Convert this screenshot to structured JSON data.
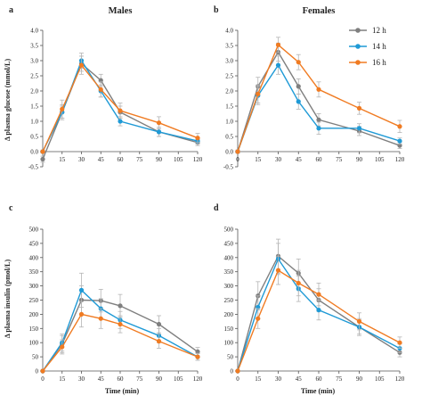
{
  "figure": {
    "ylabel_glucose": "Δ plasma glucose (mmol/L)",
    "ylabel_insulin": "Δ plasma insulin (pmol/L)",
    "xlabel": "Time (min)"
  },
  "legend": [
    {
      "name": "12 h",
      "color": "#7f7f7f"
    },
    {
      "name": "14 h",
      "color": "#1f9ad6"
    },
    {
      "name": "16 h",
      "color": "#f07b22"
    }
  ],
  "chart_data": [
    {
      "panel": "a",
      "title": "Males",
      "type": "line",
      "x": [
        0,
        15,
        30,
        45,
        60,
        90,
        120
      ],
      "xticks": [
        "0",
        "15",
        "30",
        "45",
        "60",
        "75",
        "90",
        "105",
        "120"
      ],
      "xlim": [
        0,
        120
      ],
      "ylim": [
        -0.5,
        4.0
      ],
      "yticks": [
        "-0.5",
        "0.0",
        "0.5",
        "1.0",
        "1.5",
        "2.0",
        "2.5",
        "3.0",
        "3.5",
        "4.0"
      ],
      "xlabel": "",
      "ylabel": "Δ plasma glucose (mmol/L)",
      "series": [
        {
          "name": "12 h",
          "values": [
            -0.25,
            1.3,
            2.9,
            2.35,
            1.3,
            0.65,
            0.3
          ],
          "errors": [
            0.1,
            0.2,
            0.25,
            0.2,
            0.2,
            0.15,
            0.1
          ]
        },
        {
          "name": "14 h",
          "values": [
            0,
            1.3,
            3.0,
            2.0,
            1.0,
            0.65,
            0.35
          ],
          "errors": [
            0.05,
            0.25,
            0.25,
            0.2,
            0.15,
            0.15,
            0.1
          ]
        },
        {
          "name": "16 h",
          "values": [
            0,
            1.4,
            2.85,
            2.05,
            1.35,
            0.95,
            0.45
          ],
          "errors": [
            0.05,
            0.3,
            0.3,
            0.25,
            0.25,
            0.2,
            0.15
          ]
        }
      ]
    },
    {
      "panel": "b",
      "title": "Females",
      "type": "line",
      "x": [
        0,
        15,
        30,
        45,
        60,
        90,
        120
      ],
      "xticks": [
        "0",
        "15",
        "30",
        "45",
        "60",
        "75",
        "90",
        "105",
        "120"
      ],
      "xlim": [
        0,
        120
      ],
      "ylim": [
        -0.5,
        4.0
      ],
      "yticks": [
        "-0.5",
        "0.0",
        "0.5",
        "1.0",
        "1.5",
        "2.0",
        "2.5",
        "3.0",
        "3.5",
        "4.0"
      ],
      "xlabel": "",
      "ylabel": "",
      "series": [
        {
          "name": "12 h",
          "values": [
            0,
            2.15,
            3.28,
            2.15,
            1.05,
            0.68,
            0.2
          ],
          "errors": [
            0.05,
            0.3,
            0.3,
            0.25,
            0.2,
            0.15,
            0.1
          ]
        },
        {
          "name": "14 h",
          "values": [
            0,
            1.85,
            2.85,
            1.65,
            0.77,
            0.77,
            0.35
          ],
          "errors": [
            0.05,
            0.3,
            0.3,
            0.25,
            0.2,
            0.15,
            0.1
          ]
        },
        {
          "name": "16 h",
          "values": [
            0,
            1.9,
            3.52,
            2.95,
            2.05,
            1.43,
            0.83
          ],
          "errors": [
            0.05,
            0.3,
            0.25,
            0.25,
            0.25,
            0.2,
            0.2
          ]
        }
      ]
    },
    {
      "panel": "c",
      "title": "",
      "type": "line",
      "x": [
        0,
        15,
        30,
        45,
        60,
        90,
        120
      ],
      "xticks": [
        "0",
        "15",
        "30",
        "45",
        "60",
        "75",
        "90",
        "105",
        "120"
      ],
      "xlim": [
        0,
        120
      ],
      "ylim": [
        0,
        500
      ],
      "yticks": [
        "0",
        "50",
        "100",
        "150",
        "200",
        "250",
        "300",
        "350",
        "400",
        "450",
        "500"
      ],
      "xlabel": "Time (min)",
      "ylabel": "Δ plasma insulin (pmol/L)",
      "series": [
        {
          "name": "12 h",
          "values": [
            0,
            95,
            250,
            248,
            230,
            165,
            68
          ],
          "errors": [
            3,
            30,
            50,
            40,
            40,
            30,
            15
          ]
        },
        {
          "name": "14 h",
          "values": [
            0,
            100,
            285,
            220,
            180,
            125,
            50
          ],
          "errors": [
            3,
            30,
            60,
            35,
            30,
            25,
            12
          ]
        },
        {
          "name": "16 h",
          "values": [
            0,
            85,
            200,
            185,
            165,
            105,
            50
          ],
          "errors": [
            3,
            25,
            45,
            35,
            30,
            25,
            12
          ]
        }
      ]
    },
    {
      "panel": "d",
      "title": "",
      "type": "line",
      "x": [
        0,
        15,
        30,
        45,
        60,
        90,
        120
      ],
      "xticks": [
        "0",
        "15",
        "30",
        "45",
        "60",
        "75",
        "90",
        "105",
        "120"
      ],
      "xlim": [
        0,
        120
      ],
      "ylim": [
        0,
        500
      ],
      "yticks": [
        "0",
        "50",
        "100",
        "150",
        "200",
        "250",
        "300",
        "350",
        "400",
        "450",
        "500"
      ],
      "xlabel": "Time (min)",
      "ylabel": "",
      "series": [
        {
          "name": "12 h",
          "values": [
            0,
            265,
            405,
            345,
            250,
            155,
            65
          ],
          "errors": [
            3,
            50,
            60,
            50,
            40,
            30,
            15
          ]
        },
        {
          "name": "14 h",
          "values": [
            0,
            225,
            395,
            290,
            215,
            155,
            80
          ],
          "errors": [
            3,
            40,
            55,
            45,
            35,
            25,
            15
          ]
        },
        {
          "name": "16 h",
          "values": [
            0,
            185,
            355,
            310,
            270,
            175,
            100
          ],
          "errors": [
            3,
            35,
            50,
            45,
            40,
            30,
            20
          ]
        }
      ]
    }
  ]
}
